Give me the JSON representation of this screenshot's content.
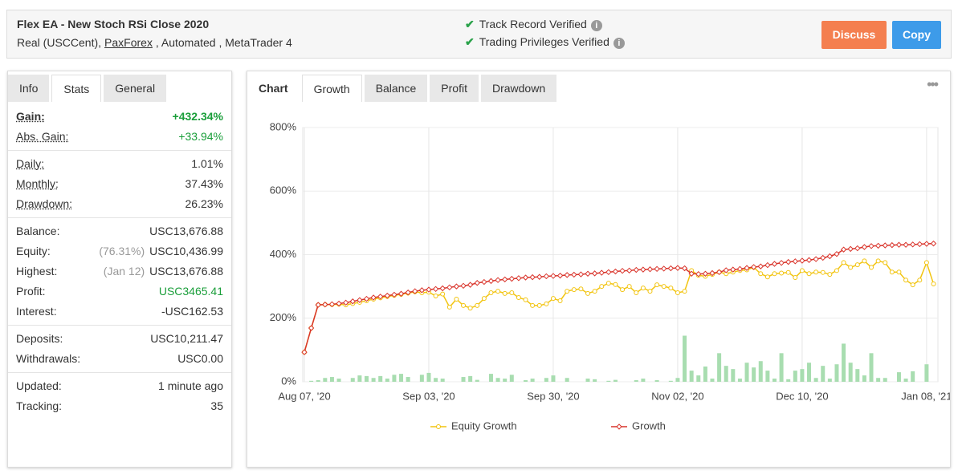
{
  "header": {
    "title": "Flex EA - New Stoch RSi Close 2020",
    "subtitle_prefix": "Real (USCCent),",
    "broker": "PaxForex",
    "subtitle_suffix": ", Automated , MetaTrader 4",
    "verified": [
      "Track Record Verified",
      "Trading Privileges Verified"
    ],
    "buttons": [
      {
        "label": "Discuss",
        "color": "#f47f4f"
      },
      {
        "label": "Copy",
        "color": "#3d9be9"
      }
    ]
  },
  "tabs": {
    "items": [
      "Info",
      "Stats",
      "General"
    ],
    "active": 1
  },
  "stats": [
    [
      {
        "label": "Gain:",
        "value": "+432.34%",
        "color": "#1a9e3a",
        "bold": true
      },
      {
        "label": "Abs. Gain:",
        "value": "+33.94%",
        "color": "#1a9e3a"
      }
    ],
    [
      {
        "label": "Daily:",
        "value": "1.01%"
      },
      {
        "label": "Monthly:",
        "value": "37.43%"
      },
      {
        "label": "Drawdown:",
        "value": "26.23%"
      }
    ],
    [
      {
        "label": "Balance:",
        "value": "USC13,676.88"
      },
      {
        "label": "Equity:",
        "note": "(76.31%)",
        "value": "USC10,436.99"
      },
      {
        "label": "Highest:",
        "note": "(Jan 12)",
        "value": "USC13,676.88"
      },
      {
        "label": "Profit:",
        "value": "USC3465.41",
        "color": "#1a9e3a"
      },
      {
        "label": "Interest:",
        "value": "-USC162.53"
      }
    ],
    [
      {
        "label": "Deposits:",
        "value": "USC10,211.47"
      },
      {
        "label": "Withdrawals:",
        "value": "USC0.00"
      }
    ],
    [
      {
        "label": "Updated:",
        "value": "1 minute ago"
      },
      {
        "label": "Tracking:",
        "value": "35"
      }
    ]
  ],
  "chart_tabs": {
    "label": "Chart",
    "items": [
      "Growth",
      "Balance",
      "Profit",
      "Drawdown"
    ],
    "active": 0
  },
  "chart_data": {
    "type": "line",
    "categories": [
      "Aug 07, '20",
      null,
      null,
      null,
      null,
      null,
      null,
      null,
      null,
      null,
      null,
      null,
      null,
      null,
      null,
      null,
      null,
      null,
      "Sep 03, '20",
      null,
      null,
      null,
      null,
      null,
      null,
      null,
      null,
      null,
      null,
      null,
      null,
      null,
      null,
      null,
      null,
      null,
      "Sep 30, '20",
      null,
      null,
      null,
      null,
      null,
      null,
      null,
      null,
      null,
      null,
      null,
      null,
      null,
      null,
      null,
      null,
      null,
      "Nov 02, '20",
      null,
      null,
      null,
      null,
      null,
      null,
      null,
      null,
      null,
      null,
      null,
      null,
      null,
      null,
      null,
      null,
      null,
      "Dec 10, '20",
      null,
      null,
      null,
      null,
      null,
      null,
      null,
      null,
      null,
      null,
      null,
      null,
      null,
      null,
      null,
      null,
      null,
      "Jan 08, '21",
      null
    ],
    "series": [
      {
        "name": "Equity Growth",
        "color": "#f2c40f",
        "marker": "circle",
        "values": [
          93,
          169,
          242,
          243,
          243,
          244,
          242,
          246,
          250,
          255,
          260,
          264,
          268,
          272,
          275,
          279,
          283,
          280,
          282,
          270,
          276,
          235,
          260,
          240,
          232,
          240,
          262,
          280,
          285,
          278,
          280,
          265,
          258,
          240,
          240,
          245,
          262,
          255,
          285,
          290,
          292,
          278,
          285,
          300,
          310,
          306,
          290,
          300,
          280,
          295,
          285,
          305,
          300,
          295,
          280,
          285,
          350,
          335,
          332,
          338,
          345,
          340,
          345,
          350,
          352,
          360,
          340,
          330,
          340,
          342,
          344,
          328,
          350,
          340,
          345,
          344,
          338,
          350,
          375,
          360,
          368,
          380,
          360,
          380,
          375,
          345,
          345,
          320,
          305,
          320,
          375,
          308
        ]
      },
      {
        "name": "Growth",
        "color": "#d9342b",
        "marker": "diamond",
        "values": [
          93,
          169,
          242,
          243,
          244,
          246,
          249,
          253,
          257,
          261,
          265,
          268,
          271,
          274,
          277,
          281,
          285,
          288,
          290,
          292,
          294,
          297,
          300,
          302,
          305,
          311,
          314,
          317,
          320,
          322,
          324,
          326,
          328,
          329,
          330,
          332,
          333,
          334,
          336,
          337,
          338,
          340,
          341,
          343,
          345,
          347,
          349,
          350,
          352,
          353,
          354,
          355,
          356,
          357,
          358,
          357,
          340,
          339,
          340,
          342,
          345,
          351,
          353,
          355,
          358,
          361,
          363,
          367,
          371,
          374,
          377,
          379,
          381,
          383,
          386,
          390,
          395,
          402,
          416,
          418,
          420,
          424,
          427,
          428,
          429,
          430,
          431,
          431,
          432,
          433,
          434,
          435
        ]
      },
      {
        "type": "bar",
        "color": "#a8ddb0",
        "values": [
          0,
          3,
          5,
          12,
          15,
          10,
          0,
          12,
          20,
          18,
          12,
          18,
          10,
          22,
          25,
          15,
          0,
          22,
          28,
          12,
          10,
          0,
          0,
          15,
          18,
          6,
          0,
          25,
          12,
          10,
          22,
          0,
          5,
          10,
          0,
          12,
          20,
          0,
          12,
          0,
          0,
          10,
          8,
          0,
          3,
          6,
          0,
          0,
          5,
          10,
          0,
          5,
          0,
          3,
          12,
          145,
          35,
          20,
          48,
          10,
          90,
          50,
          40,
          10,
          60,
          45,
          65,
          35,
          10,
          90,
          8,
          35,
          40,
          60,
          12,
          50,
          10,
          55,
          120,
          60,
          40,
          20,
          90,
          12,
          12,
          0,
          30,
          10,
          33,
          0,
          55,
          0
        ]
      }
    ],
    "ylim": [
      0,
      800
    ],
    "yticks": [
      {
        "value": 0,
        "label": "0%"
      },
      {
        "value": 200,
        "label": "200%"
      },
      {
        "value": 400,
        "label": "400%"
      },
      {
        "value": 600,
        "label": "600%"
      },
      {
        "value": 800,
        "label": "800%"
      }
    ],
    "grid": true
  }
}
